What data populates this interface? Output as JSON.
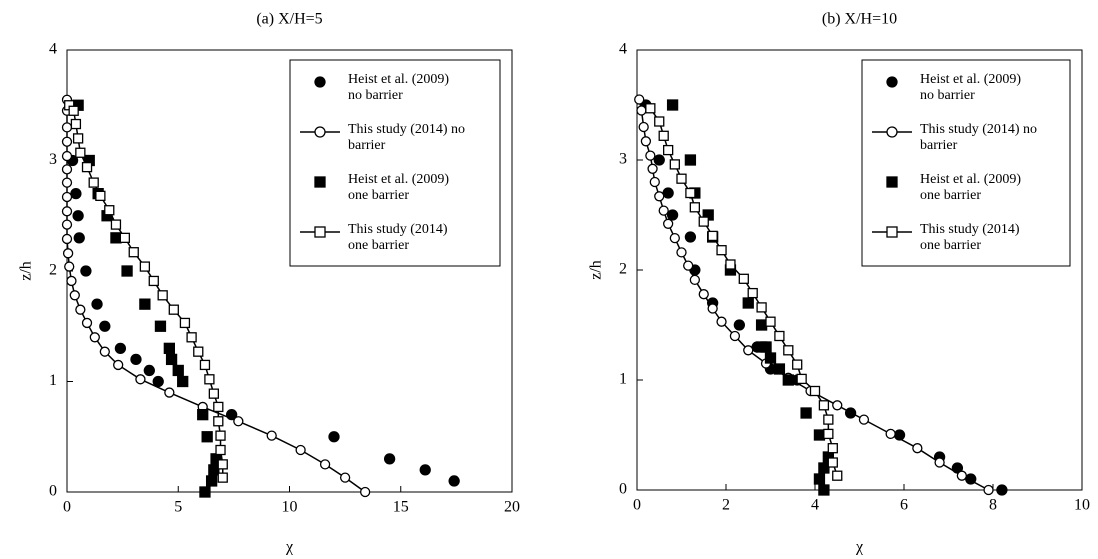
{
  "chart_data": [
    {
      "type": "line",
      "title": "(a) X/H=5",
      "x_label": "χ",
      "y_label": "z/h",
      "xlim": [
        0,
        20
      ],
      "xticks": [
        0,
        5,
        10,
        15,
        20
      ],
      "ylim": [
        0,
        4
      ],
      "yticks": [
        0,
        1,
        2,
        3,
        4
      ],
      "series": [
        {
          "name": "Heist et al. (2009) no barrier",
          "color": "#000000",
          "marker": "circle",
          "filled": true,
          "line": false,
          "x": [
            0.25,
            0.4,
            0.5,
            0.55,
            0.85,
            1.35,
            1.7,
            2.4,
            3.1,
            3.7,
            4.1,
            7.4,
            12.0,
            14.5,
            16.1,
            17.4
          ],
          "values": [
            3.0,
            2.7,
            2.5,
            2.3,
            2.0,
            1.7,
            1.5,
            1.3,
            1.2,
            1.1,
            1.0,
            0.7,
            0.5,
            0.3,
            0.2,
            0.1
          ]
        },
        {
          "name": "This study (2014) no barrier",
          "color": "#000000",
          "marker": "circle",
          "filled": false,
          "line": true,
          "x": [
            0,
            0,
            0,
            0,
            0,
            0,
            0,
            0,
            0,
            0,
            0,
            0.05,
            0.1,
            0.2,
            0.35,
            0.6,
            0.9,
            1.25,
            1.7,
            2.3,
            3.3,
            4.6,
            6.1,
            7.7,
            9.2,
            10.5,
            11.6,
            12.5,
            13.4
          ],
          "values": [
            3.55,
            3.45,
            3.3,
            3.17,
            3.04,
            2.92,
            2.8,
            2.67,
            2.54,
            2.42,
            2.29,
            2.16,
            2.04,
            1.91,
            1.78,
            1.65,
            1.53,
            1.4,
            1.27,
            1.15,
            1.02,
            0.9,
            0.77,
            0.64,
            0.51,
            0.38,
            0.25,
            0.13,
            0
          ]
        },
        {
          "name": "Heist et al. (2009) one barrier",
          "color": "#000000",
          "marker": "square",
          "filled": true,
          "line": false,
          "x": [
            0.5,
            1.0,
            1.4,
            1.8,
            2.2,
            2.7,
            3.5,
            4.2,
            4.6,
            4.7,
            5.0,
            5.2,
            6.1,
            6.3,
            6.7,
            6.6,
            6.5,
            6.2
          ],
          "values": [
            3.5,
            3.0,
            2.7,
            2.5,
            2.3,
            2.0,
            1.7,
            1.5,
            1.3,
            1.2,
            1.1,
            1.0,
            0.7,
            0.5,
            0.3,
            0.2,
            0.1,
            0
          ]
        },
        {
          "name": "This study (2014) one barrier",
          "color": "#000000",
          "marker": "square",
          "filled": false,
          "line": true,
          "x": [
            0.1,
            0.3,
            0.4,
            0.5,
            0.6,
            0.9,
            1.2,
            1.5,
            1.9,
            2.2,
            2.6,
            3.0,
            3.5,
            3.9,
            4.3,
            4.8,
            5.3,
            5.6,
            5.9,
            6.2,
            6.4,
            6.6,
            6.8,
            6.8,
            6.9,
            6.9,
            7.0,
            7.0
          ],
          "values": [
            3.5,
            3.45,
            3.33,
            3.2,
            3.07,
            2.94,
            2.8,
            2.68,
            2.55,
            2.42,
            2.3,
            2.17,
            2.04,
            1.91,
            1.78,
            1.65,
            1.53,
            1.4,
            1.27,
            1.15,
            1.02,
            0.89,
            0.77,
            0.64,
            0.51,
            0.38,
            0.25,
            0.13
          ]
        }
      ]
    },
    {
      "type": "line",
      "title": "(b) X/H=10",
      "x_label": "χ",
      "y_label": "z/h",
      "xlim": [
        0,
        10
      ],
      "xticks": [
        0,
        2,
        4,
        6,
        8,
        10
      ],
      "ylim": [
        0,
        4
      ],
      "yticks": [
        0,
        1,
        2,
        3,
        4
      ],
      "series": [
        {
          "name": "Heist et al. (2009) no barrier",
          "color": "#000000",
          "marker": "circle",
          "filled": true,
          "line": false,
          "x": [
            0.2,
            0.5,
            0.7,
            0.8,
            1.2,
            1.3,
            1.7,
            2.3,
            2.7,
            3.0,
            3.6,
            4.8,
            5.9,
            6.8,
            7.2,
            7.5,
            8.2
          ],
          "values": [
            3.5,
            3.0,
            2.7,
            2.5,
            2.3,
            2.0,
            1.7,
            1.5,
            1.3,
            1.1,
            1.0,
            0.7,
            0.5,
            0.3,
            0.2,
            0.1,
            0
          ]
        },
        {
          "name": "This study (2014) no barrier",
          "color": "#000000",
          "marker": "circle",
          "filled": false,
          "line": true,
          "x": [
            0.05,
            0.1,
            0.15,
            0.2,
            0.3,
            0.35,
            0.4,
            0.5,
            0.6,
            0.7,
            0.85,
            1.0,
            1.15,
            1.3,
            1.5,
            1.7,
            1.9,
            2.2,
            2.5,
            2.9,
            3.4,
            3.9,
            4.5,
            5.1,
            5.7,
            6.3,
            6.8,
            7.3,
            7.9
          ],
          "values": [
            3.55,
            3.45,
            3.3,
            3.17,
            3.04,
            2.92,
            2.8,
            2.67,
            2.54,
            2.42,
            2.29,
            2.16,
            2.04,
            1.91,
            1.78,
            1.65,
            1.53,
            1.4,
            1.27,
            1.15,
            1.02,
            0.9,
            0.77,
            0.64,
            0.51,
            0.38,
            0.25,
            0.13,
            0
          ]
        },
        {
          "name": "Heist et al. (2009) one barrier",
          "color": "#000000",
          "marker": "square",
          "filled": true,
          "line": false,
          "x": [
            0.8,
            1.2,
            1.3,
            1.6,
            1.7,
            2.1,
            2.5,
            2.8,
            2.8,
            2.9,
            3.0,
            3.2,
            3.4,
            3.8,
            4.1,
            4.3,
            4.2,
            4.1,
            4.2
          ],
          "values": [
            3.5,
            3.0,
            2.7,
            2.5,
            2.3,
            2.0,
            1.7,
            1.5,
            1.3,
            1.3,
            1.2,
            1.1,
            1.0,
            0.7,
            0.5,
            0.3,
            0.2,
            0.1,
            0
          ]
        },
        {
          "name": "This study (2014) one barrier",
          "color": "#000000",
          "marker": "square",
          "filled": false,
          "line": true,
          "x": [
            0.3,
            0.5,
            0.6,
            0.7,
            0.85,
            1.0,
            1.2,
            1.3,
            1.5,
            1.7,
            1.9,
            2.1,
            2.4,
            2.6,
            2.8,
            3.0,
            3.2,
            3.4,
            3.6,
            3.7,
            4.0,
            4.2,
            4.3,
            4.3,
            4.4,
            4.4,
            4.5
          ],
          "values": [
            3.47,
            3.35,
            3.22,
            3.09,
            2.96,
            2.83,
            2.7,
            2.57,
            2.44,
            2.31,
            2.18,
            2.05,
            1.92,
            1.79,
            1.66,
            1.53,
            1.4,
            1.27,
            1.14,
            1.01,
            0.9,
            0.77,
            0.64,
            0.51,
            0.38,
            0.25,
            0.13
          ]
        }
      ]
    }
  ]
}
